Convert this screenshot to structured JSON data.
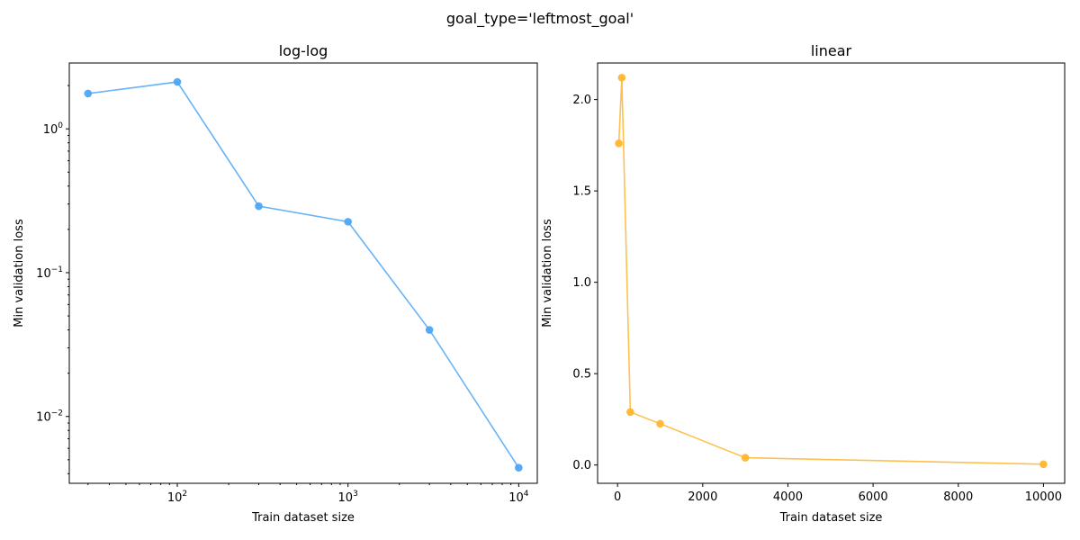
{
  "figure": {
    "suptitle": "goal_type='leftmost_goal'"
  },
  "chart_data": [
    {
      "type": "line",
      "title": "log-log",
      "xlabel": "Train dataset size",
      "ylabel": "Min validation loss",
      "xscale": "log",
      "yscale": "log",
      "xlim": [
        23.3,
        12850
      ],
      "ylim": [
        0.00343,
        2.87
      ],
      "grid": false,
      "markers": true,
      "color": "#4da6f5",
      "series": [
        {
          "x": [
            30,
            100,
            300,
            1000,
            3000,
            10000
          ],
          "y": [
            1.76,
            2.12,
            0.29,
            0.226,
            0.04,
            0.0044
          ]
        }
      ],
      "xticks": [
        {
          "value": 100,
          "base": "10",
          "exp": "2"
        },
        {
          "value": 1000,
          "base": "10",
          "exp": "3"
        },
        {
          "value": 10000,
          "base": "10",
          "exp": "4"
        }
      ],
      "yticks": [
        {
          "value": 0.01,
          "base": "10",
          "exp": "−2"
        },
        {
          "value": 0.1,
          "base": "10",
          "exp": "−1"
        },
        {
          "value": 1,
          "base": "10",
          "exp": "0"
        }
      ]
    },
    {
      "type": "line",
      "title": "linear",
      "xlabel": "Train dataset size",
      "ylabel": "Min validation loss",
      "xscale": "linear",
      "yscale": "linear",
      "xlim": [
        -468.5,
        10498.5
      ],
      "ylim": [
        -0.1,
        2.2
      ],
      "grid": false,
      "markers": true,
      "color": "#ffb530",
      "series": [
        {
          "x": [
            30,
            100,
            300,
            1000,
            3000,
            10000
          ],
          "y": [
            1.76,
            2.12,
            0.29,
            0.226,
            0.04,
            0.0044
          ]
        }
      ],
      "xticks": [
        {
          "value": 0,
          "label": "0"
        },
        {
          "value": 2000,
          "label": "2000"
        },
        {
          "value": 4000,
          "label": "4000"
        },
        {
          "value": 6000,
          "label": "6000"
        },
        {
          "value": 8000,
          "label": "8000"
        },
        {
          "value": 10000,
          "label": "10000"
        }
      ],
      "yticks": [
        {
          "value": 0.0,
          "label": "0.0"
        },
        {
          "value": 0.5,
          "label": "0.5"
        },
        {
          "value": 1.0,
          "label": "1.0"
        },
        {
          "value": 1.5,
          "label": "1.5"
        },
        {
          "value": 2.0,
          "label": "2.0"
        }
      ]
    }
  ]
}
